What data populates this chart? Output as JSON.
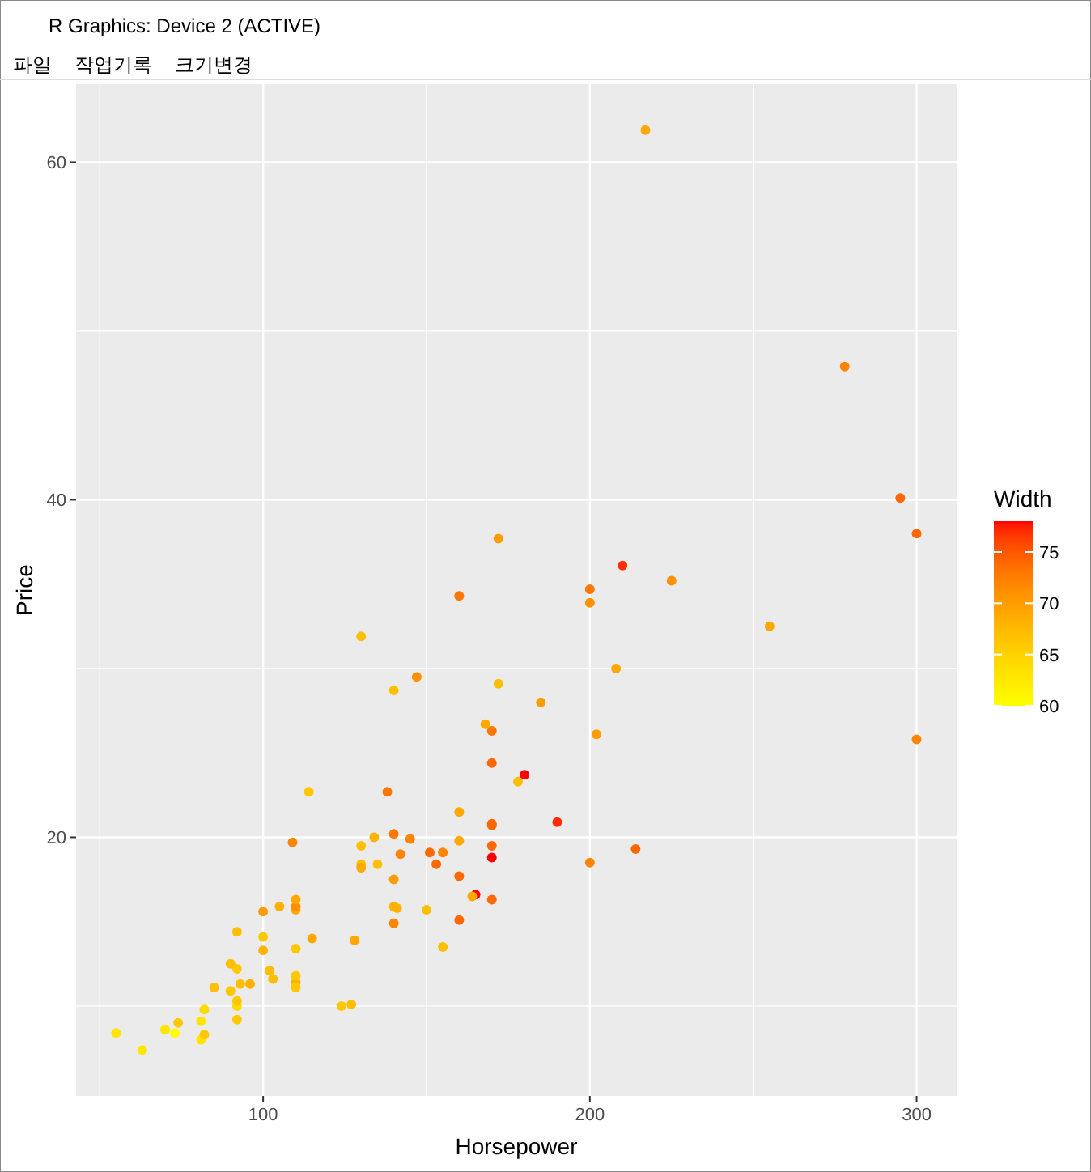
{
  "chart_data": {
    "type": "scatter",
    "title": "R Graphics: Device 2 (ACTIVE)",
    "annotations": [
      "파일",
      "작업기록",
      "크기변경"
    ],
    "xlabel": "Horsepower",
    "ylabel": "Price",
    "clabel": "Width",
    "x": [
      140,
      200,
      172,
      172,
      208,
      110,
      170,
      180,
      170,
      200,
      295,
      110,
      110,
      160,
      110,
      170,
      165,
      170,
      300,
      153,
      141,
      147,
      92,
      93,
      100,
      142,
      100,
      300,
      92,
      214,
      63,
      127,
      96,
      105,
      115,
      145,
      140,
      190,
      55,
      90,
      160,
      102,
      140,
      81,
      124,
      92,
      128,
      278,
      185,
      225,
      160,
      210,
      82,
      103,
      164,
      155,
      255,
      130,
      217,
      100,
      140,
      92,
      202,
      110,
      150,
      151,
      160,
      155,
      110,
      170,
      170,
      92,
      74,
      110,
      160,
      200,
      170,
      140,
      85,
      130,
      73,
      90,
      130,
      70,
      82,
      135,
      130,
      138,
      81,
      109,
      134,
      178,
      114,
      168
    ],
    "values": [
      15.9,
      33.9,
      29.1,
      37.7,
      30.0,
      15.7,
      20.8,
      23.7,
      26.3,
      34.7,
      40.1,
      13.4,
      11.4,
      15.1,
      15.9,
      16.3,
      16.6,
      18.8,
      38.0,
      18.4,
      15.8,
      29.5,
      9.2,
      11.3,
      13.3,
      19.0,
      15.6,
      25.8,
      12.2,
      19.3,
      7.4,
      10.1,
      11.3,
      15.9,
      14.0,
      19.9,
      20.2,
      20.9,
      8.4,
      12.5,
      19.8,
      12.1,
      17.5,
      8.0,
      10.0,
      10.0,
      13.9,
      47.9,
      28.0,
      35.2,
      34.3,
      36.1,
      8.3,
      11.6,
      16.5,
      19.1,
      32.5,
      31.9,
      61.9,
      14.1,
      14.9,
      10.3,
      26.1,
      11.8,
      15.7,
      19.1,
      21.5,
      13.5,
      16.3,
      19.5,
      20.7,
      14.4,
      9.0,
      11.1,
      17.7,
      18.5,
      24.4,
      28.7,
      11.1,
      19.5,
      8.4,
      10.9,
      18.4,
      8.6,
      9.8,
      18.4,
      18.2,
      22.7,
      9.1,
      19.7,
      20.0,
      23.3,
      22.7,
      26.7
    ],
    "cvalues": [
      68,
      71,
      67,
      70,
      69,
      69,
      74,
      78,
      73,
      73,
      74,
      66,
      68,
      74,
      71,
      74,
      78,
      78,
      74,
      74,
      68,
      71,
      66,
      67,
      68,
      72,
      70,
      72,
      66,
      74,
      63,
      67,
      68,
      68,
      69,
      72,
      73,
      77,
      63,
      67,
      69,
      67,
      70,
      63,
      66,
      64,
      69,
      72,
      70,
      71,
      73,
      77,
      66,
      67,
      69,
      72,
      69,
      67,
      69,
      66,
      72,
      66,
      70,
      66,
      67,
      74,
      69,
      67,
      69,
      74,
      74,
      67,
      66,
      66,
      74,
      72,
      74,
      67,
      67,
      67,
      60,
      66,
      67,
      63,
      64,
      67,
      69,
      73,
      63,
      72,
      68,
      67,
      66,
      69
    ],
    "xlim": [
      42.75,
      312.25
    ],
    "ylim": [
      4.675,
      64.625
    ],
    "xticks": [
      {
        "value": 50,
        "label": null
      },
      100,
      {
        "value": 150,
        "label": null
      },
      200,
      {
        "value": 250,
        "label": null
      },
      300
    ],
    "yticks": [
      {
        "value": 10,
        "label": null
      },
      20,
      {
        "value": 30,
        "label": null
      },
      40,
      {
        "value": 50,
        "label": null
      },
      60
    ],
    "clim": [
      60,
      78
    ],
    "cticks": [
      60,
      65,
      70,
      75
    ],
    "grid": true,
    "marker": "circle"
  }
}
